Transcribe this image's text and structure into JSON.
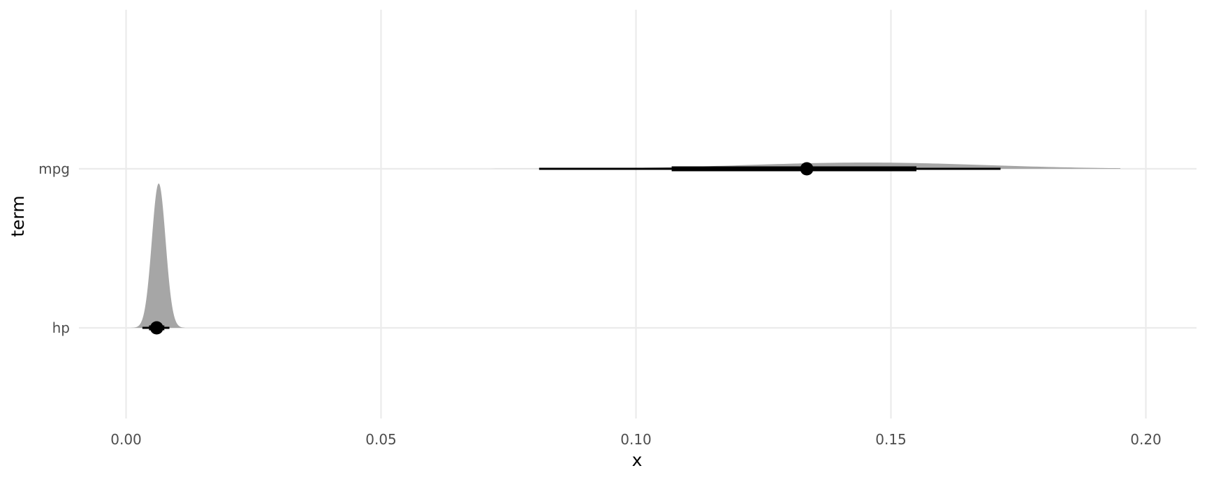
{
  "chart_data": {
    "type": "halfeye",
    "xlabel": "x",
    "ylabel": "term",
    "xlim": [
      -0.009,
      0.21
    ],
    "x_ticks": [
      0.0,
      0.05,
      0.1,
      0.15,
      0.2
    ],
    "x_tick_labels": [
      "0.00",
      "0.05",
      "0.10",
      "0.15",
      "0.20"
    ],
    "categories": [
      "hp",
      "mpg"
    ],
    "grid": true,
    "legend": "none",
    "colors": {
      "density_fill": "#a6a6a6",
      "interval": "#000000",
      "grid": "#ebebeb"
    },
    "series": [
      {
        "term": "hp",
        "point": 0.006,
        "interval_66": [
          0.0045,
          0.0075
        ],
        "interval_95": [
          0.0032,
          0.0085
        ],
        "density_range": [
          0.001,
          0.0115
        ],
        "density_peak": 0.0064
      },
      {
        "term": "mpg",
        "point": 0.1335,
        "interval_66": [
          0.107,
          0.155
        ],
        "interval_95": [
          0.081,
          0.1715
        ],
        "density_range": [
          0.065,
          0.195
        ],
        "density_peak": 0.145
      }
    ]
  }
}
